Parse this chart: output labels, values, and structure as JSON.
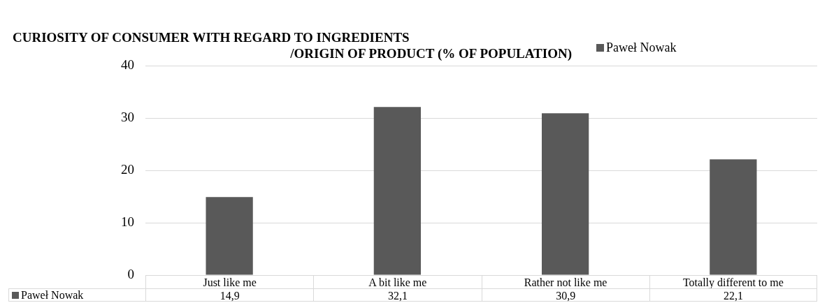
{
  "chart_data": {
    "type": "bar",
    "title": "CURIOSITY OF CONSUMER WITH REGARD TO INGREDIENTS\n/ORIGIN OF PRODUCT (% OF POPULATION)",
    "categories": [
      "Just like me",
      "A bit like me",
      "Rather not like me",
      "Totally different to me"
    ],
    "series": [
      {
        "name": "Paweł Nowak",
        "color": "#595959",
        "values": [
          14.9,
          32.1,
          30.9,
          22.1
        ],
        "value_labels": [
          "14,9",
          "32,1",
          "30,9",
          "22,1"
        ]
      }
    ],
    "ylim": [
      0,
      40
    ],
    "yticks": [
      0,
      10,
      20,
      30,
      40
    ],
    "grid": "y",
    "legend": "top right"
  }
}
